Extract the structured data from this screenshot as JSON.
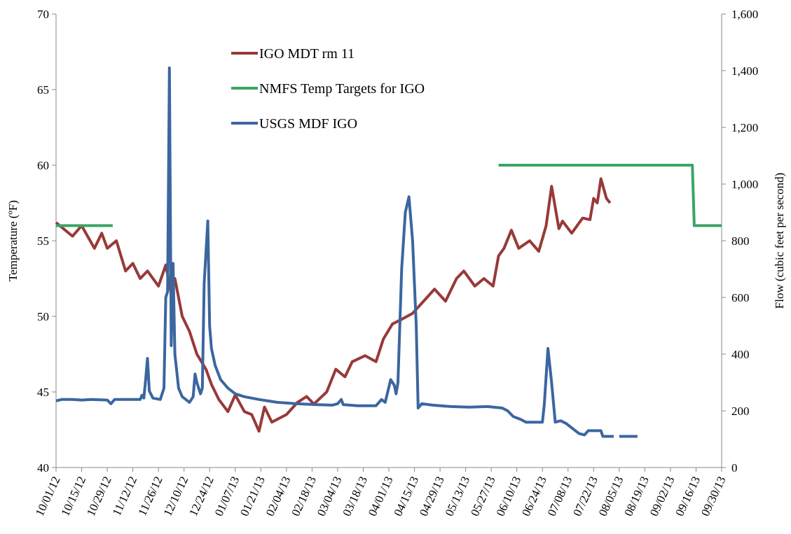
{
  "chart_data": {
    "type": "line",
    "y_label": "Temperature (ºF)",
    "y2_label": "Flow (cubic feet per second)",
    "xlim": [
      "10/01/12",
      "09/30/13"
    ],
    "xticks": [
      "10/01/12",
      "10/15/12",
      "10/29/12",
      "11/12/12",
      "11/26/12",
      "12/10/12",
      "12/24/12",
      "01/07/13",
      "01/21/13",
      "02/04/13",
      "02/18/13",
      "03/04/13",
      "03/18/13",
      "04/01/13",
      "04/15/13",
      "04/29/13",
      "05/13/13",
      "05/27/13",
      "06/10/13",
      "06/24/13",
      "07/08/13",
      "07/22/13",
      "08/05/13",
      "08/19/13",
      "09/02/13",
      "09/16/13",
      "09/30/13"
    ],
    "ylim": [
      40,
      70
    ],
    "yticks": [
      40,
      45,
      50,
      55,
      60,
      65,
      70
    ],
    "y2lim": [
      0,
      1600
    ],
    "y2ticks": [
      0,
      200,
      400,
      600,
      800,
      {
        "value": 1000,
        "label": "1,000"
      },
      {
        "value": 1200,
        "label": "1,200"
      },
      {
        "value": 1400,
        "label": "1,400"
      },
      {
        "value": 1600,
        "label": "1,600"
      }
    ],
    "series": [
      {
        "name": "IGO MDT rm 11",
        "color": "#973a38",
        "x": [
          "10/01/12",
          "10/10/12",
          "10/15/12",
          "10/22/12",
          "10/26/12",
          "10/29/12",
          "11/03/12",
          "11/08/12",
          "11/12/12",
          "11/16/12",
          "11/20/12",
          "11/26/12",
          "11/30/12",
          "12/03/12",
          "12/05/12",
          "12/09/12",
          "12/13/12",
          "12/17/12",
          "12/22/12",
          "12/25/12",
          "12/29/12",
          "01/03/13",
          "01/07/13",
          "01/12/13",
          "01/16/13",
          "01/20/13",
          "01/23/13",
          "01/27/13",
          "02/04/13",
          "02/10/13",
          "02/15/13",
          "02/19/13",
          "02/26/13",
          "03/03/13",
          "03/08/13",
          "03/12/13",
          "03/19/13",
          "03/25/13",
          "03/29/13",
          "04/03/13",
          "04/08/13",
          "04/14/13",
          "04/20/13",
          "04/26/13",
          "05/02/13",
          "05/08/13",
          "05/12/13",
          "05/18/13",
          "05/23/13",
          "05/28/13",
          "05/31/13",
          "06/03/13",
          "06/07/13",
          "06/11/13",
          "06/17/13",
          "06/22/13",
          "06/26/13",
          "06/29/13",
          "07/03/13",
          "07/05/13",
          "07/10/13",
          "07/16/13",
          "07/20/13",
          "07/22/13",
          "07/24/13",
          "07/26/13",
          "07/29/13",
          "07/31/13"
        ],
        "values": [
          56.2,
          55.3,
          56,
          54.5,
          55.5,
          54.5,
          55,
          53,
          53.5,
          52.5,
          53,
          52,
          53.4,
          51.5,
          52.5,
          50,
          49,
          47.5,
          46.5,
          45.5,
          44.5,
          43.7,
          44.8,
          43.7,
          43.5,
          42.4,
          44,
          43,
          43.5,
          44.3,
          44.7,
          44.2,
          45,
          46.5,
          46,
          47,
          47.4,
          47,
          48.5,
          49.5,
          49.8,
          50.2,
          51,
          51.8,
          51,
          52.5,
          53,
          52,
          52.5,
          52,
          54,
          54.5,
          55.7,
          54.5,
          55,
          54.3,
          56,
          58.6,
          55.8,
          56.3,
          55.5,
          56.5,
          56.4,
          57.8,
          57.5,
          59.1,
          57.8,
          57.5
        ]
      },
      {
        "name": "NMFS Temp Targets for IGO",
        "color": "#3aa566",
        "x": [
          "10/01/12",
          "11/01/12",
          "11/02/12",
          "05/31/13",
          "09/14/13",
          "09/15/13",
          "09/30/13"
        ],
        "values": [
          56,
          56,
          null,
          60,
          60,
          56,
          56
        ]
      },
      {
        "name": "USGS MDF IGO",
        "color": "#3b66a0",
        "axis": "y2",
        "x": [
          "10/01/12",
          "10/04/12",
          "10/10/12",
          "10/15/12",
          "10/20/12",
          "10/29/12",
          "10/31/12",
          "11/02/12",
          "11/10/12",
          "11/16/12",
          "11/17/12",
          "11/18/12",
          "11/19/12",
          "11/20/12",
          "11/21/12",
          "11/23/12",
          "11/27/12",
          "11/29/12",
          "11/30/12",
          "12/01/12",
          "12/02/12",
          "12/03/12",
          "12/04/12",
          "12/05/12",
          "12/07/12",
          "12/09/12",
          "12/13/12",
          "12/15/12",
          "12/16/12",
          "12/17/12",
          "12/19/12",
          "12/20/12",
          "12/21/12",
          "12/23/12",
          "12/24/12",
          "12/25/12",
          "12/27/12",
          "12/30/12",
          "01/03/13",
          "01/07/13",
          "01/12/13",
          "01/20/13",
          "01/30/13",
          "02/10/13",
          "02/20/13",
          "03/01/13",
          "03/04/13",
          "03/06/13",
          "03/07/13",
          "03/15/13",
          "03/25/13",
          "03/28/13",
          "03/30/13",
          "04/02/13",
          "04/04/13",
          "04/05/13",
          "04/06/13",
          "04/08/13",
          "04/10/13",
          "04/12/13",
          "04/14/13",
          "04/16/13",
          "04/17/13",
          "04/19/13",
          "04/25/13",
          "05/05/13",
          "05/15/13",
          "05/25/13",
          "06/02/13",
          "06/05/13",
          "06/08/13",
          "06/12/13",
          "06/15/13",
          "06/20/13",
          "06/24/13",
          "06/25/13",
          "06/27/13",
          "06/29/13",
          "07/01/13",
          "07/04/13",
          "07/07/13",
          "07/10/13",
          "07/14/13",
          "07/17/13",
          "07/19/13",
          "07/26/13",
          "07/27/13",
          "08/02/13",
          "08/03/13",
          "08/05/13",
          "08/15/13"
        ],
        "values": [
          235,
          240,
          240,
          238,
          240,
          238,
          225,
          240,
          240,
          240,
          255,
          245,
          310,
          385,
          270,
          245,
          240,
          280,
          600,
          620,
          1410,
          430,
          720,
          400,
          280,
          250,
          230,
          250,
          330,
          300,
          260,
          280,
          650,
          870,
          500,
          420,
          360,
          310,
          280,
          260,
          250,
          240,
          230,
          225,
          222,
          220,
          225,
          240,
          222,
          218,
          218,
          240,
          230,
          310,
          290,
          260,
          300,
          700,
          900,
          955,
          800,
          500,
          210,
          225,
          220,
          215,
          213,
          215,
          210,
          200,
          180,
          170,
          160,
          160,
          160,
          220,
          420,
          300,
          160,
          165,
          155,
          140,
          120,
          115,
          130,
          130,
          110,
          110,
          null,
          110,
          110
        ]
      }
    ]
  }
}
